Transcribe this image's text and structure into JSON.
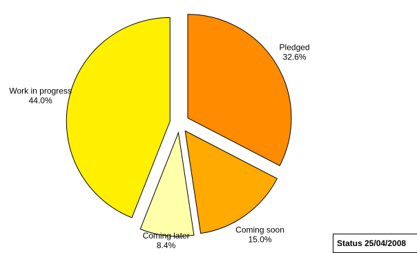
{
  "chart_data": {
    "type": "pie",
    "exploded": true,
    "start_angle_deg": 0,
    "direction": "clockwise",
    "slices": [
      {
        "label": "Pledged",
        "percent_label": "32.6%",
        "value": 32.6,
        "color": "#FF8C00"
      },
      {
        "label": "Coming soon",
        "percent_label": "15.0%",
        "value": 15.0,
        "color": "#FFAA00"
      },
      {
        "label": "Coming later",
        "percent_label": "8.4%",
        "value": 8.4,
        "color": "#FFFFAA"
      },
      {
        "label": "Work in progress",
        "percent_label": "44.0%",
        "value": 44.0,
        "color": "#FFF000"
      }
    ]
  },
  "status": {
    "text": "Status 25/04/2008"
  }
}
